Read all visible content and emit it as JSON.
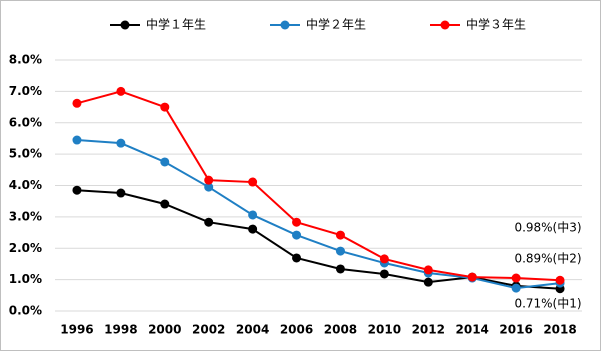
{
  "chart_data": {
    "type": "line",
    "categories": [
      "1996",
      "1998",
      "2000",
      "2002",
      "2004",
      "2006",
      "2008",
      "2010",
      "2012",
      "2014",
      "2016",
      "2018"
    ],
    "series": [
      {
        "name": "中学１年生",
        "color": "#000000",
        "values": [
          3.85,
          3.76,
          3.41,
          2.83,
          2.61,
          1.69,
          1.34,
          1.18,
          0.92,
          1.08,
          0.8,
          0.71
        ]
      },
      {
        "name": "中学２年生",
        "color": "#1f7fc4",
        "values": [
          5.45,
          5.35,
          4.75,
          3.95,
          3.06,
          2.42,
          1.91,
          1.53,
          1.21,
          1.05,
          0.73,
          0.89
        ]
      },
      {
        "name": "中学３年生",
        "color": "#ff0000",
        "values": [
          6.62,
          7.0,
          6.5,
          4.17,
          4.11,
          2.83,
          2.42,
          1.66,
          1.31,
          1.08,
          1.05,
          0.98
        ]
      }
    ],
    "ylim": [
      0,
      8
    ],
    "yticks": [
      {
        "value": 0,
        "label": "0.0%"
      },
      {
        "value": 1,
        "label": "1.0%"
      },
      {
        "value": 2,
        "label": "2.0%"
      },
      {
        "value": 3,
        "label": "3.0%"
      },
      {
        "value": 4,
        "label": "4.0%"
      },
      {
        "value": 5,
        "label": "5.0%"
      },
      {
        "value": 6,
        "label": "6.0%"
      },
      {
        "value": 7,
        "label": "7.0%"
      },
      {
        "value": 8,
        "label": "8.0%"
      }
    ],
    "grid": true,
    "annotations": [
      {
        "text": "0.98%(中3)",
        "color": "#ff0000"
      },
      {
        "text": "0.89%(中2)",
        "color": "#1f7fc4"
      },
      {
        "text": "0.71%(中1)",
        "color": "#000000"
      }
    ]
  }
}
